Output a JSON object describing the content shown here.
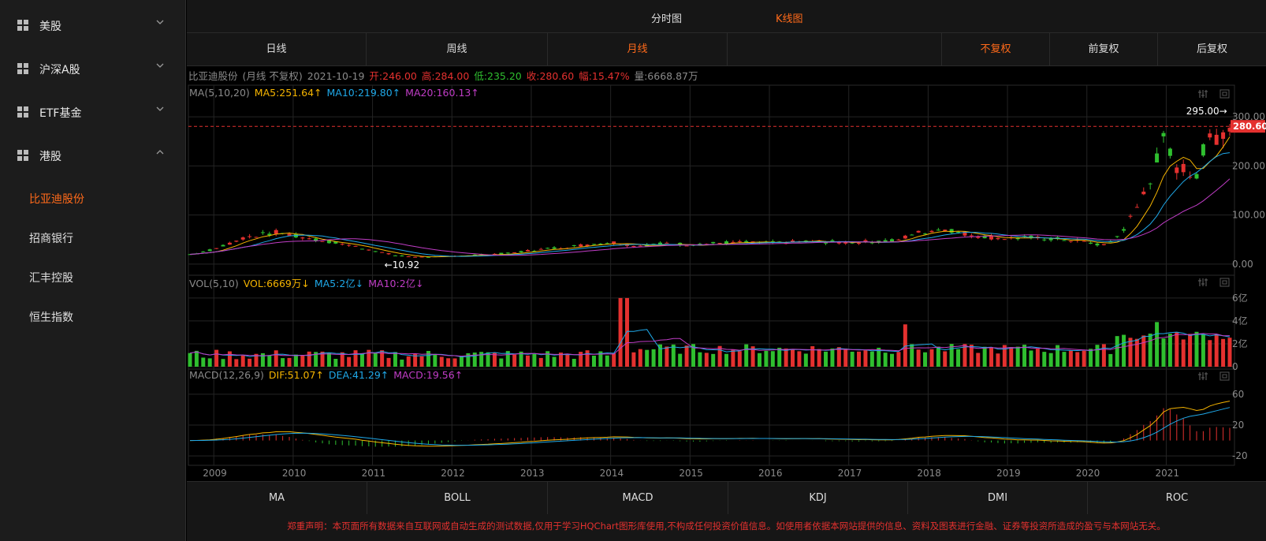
{
  "colors": {
    "accent": "#ff6a1a",
    "up": "#e4312f",
    "down": "#2fbf2f",
    "ma5": "#f5b400",
    "ma10": "#1fa8e8",
    "ma20": "#c03dc6"
  },
  "sidebar": {
    "groups": [
      {
        "label": "美股",
        "expanded": false
      },
      {
        "label": "沪深A股",
        "expanded": false
      },
      {
        "label": "ETF基金",
        "expanded": false
      },
      {
        "label": "港股",
        "expanded": true
      }
    ],
    "sub_items": [
      "比亚迪股份",
      "招商银行",
      "汇丰控股",
      "恒生指数"
    ],
    "active_sub_item": "比亚迪股份"
  },
  "top_tabs": {
    "minute": "分时图",
    "kline": "K线图",
    "active": "K线图"
  },
  "periods": [
    {
      "label": "日线"
    },
    {
      "label": "周线"
    },
    {
      "label": "月线",
      "active": true
    }
  ],
  "adjust": [
    {
      "label": "不复权",
      "active": true
    },
    {
      "label": "前复权"
    },
    {
      "label": "后复权"
    }
  ],
  "info": {
    "name": "比亚迪股份",
    "mode": "(月线 不复权)",
    "date": "2021-10-19",
    "open": "开:246.00",
    "high": "高:284.00",
    "low": "低:235.20",
    "close": "收:280.60",
    "change": "幅:15.47%",
    "volume": "量:6668.87万"
  },
  "ma_line": {
    "prefix": "MA(5,10,20)",
    "ma5": "MA5:251.64↑",
    "ma10": "MA10:219.80↑",
    "ma20": "MA20:160.13↑"
  },
  "vol_line": {
    "prefix": "VOL(5,10)",
    "vol": "VOL:6669万↓",
    "ma5": "MA5:2亿↓",
    "ma10": "MA10:2亿↓"
  },
  "macd_line": {
    "prefix": "MACD(12,26,9)",
    "dif": "DIF:51.07↑",
    "dea": "DEA:41.29↑",
    "macd": "MACD:19.56↑"
  },
  "chart_data": {
    "type": "candlestick",
    "period": "monthly",
    "price_axis": {
      "ticks": [
        "300.00",
        "200.00",
        "100.00",
        "0.00"
      ],
      "range": [
        -5,
        305
      ]
    },
    "last_price": "280.60",
    "max_label": "295.00→",
    "min_label": "←10.92",
    "volume_axis": {
      "ticks": [
        "6亿",
        "4亿",
        "2亿",
        "0"
      ],
      "range": [
        0,
        6.2
      ]
    },
    "macd_axis": {
      "ticks": [
        "60",
        "20",
        "-20"
      ],
      "range": [
        -27,
        68
      ]
    },
    "x_labels": [
      "2009",
      "2010",
      "2011",
      "2012",
      "2013",
      "2014",
      "2015",
      "2016",
      "2017",
      "2018",
      "2019",
      "2020",
      "2021"
    ],
    "start_year": 2008.7,
    "end_year": 2021.8,
    "anchor_closes": [
      [
        2008.7,
        20
      ],
      [
        2009.0,
        30
      ],
      [
        2009.4,
        55
      ],
      [
        2009.8,
        65
      ],
      [
        2010.2,
        52
      ],
      [
        2010.6,
        42
      ],
      [
        2011.0,
        28
      ],
      [
        2011.3,
        17
      ],
      [
        2011.7,
        14
      ],
      [
        2012.2,
        18
      ],
      [
        2012.7,
        22
      ],
      [
        2013.0,
        28
      ],
      [
        2013.5,
        36
      ],
      [
        2014.0,
        45
      ],
      [
        2014.3,
        37
      ],
      [
        2014.7,
        42
      ],
      [
        2015.0,
        40
      ],
      [
        2015.5,
        44
      ],
      [
        2016.0,
        43
      ],
      [
        2016.5,
        46
      ],
      [
        2017.0,
        44
      ],
      [
        2017.6,
        48
      ],
      [
        2017.8,
        62
      ],
      [
        2018.2,
        72
      ],
      [
        2018.5,
        60
      ],
      [
        2018.9,
        52
      ],
      [
        2019.3,
        54
      ],
      [
        2019.7,
        50
      ],
      [
        2020.0,
        44
      ],
      [
        2020.2,
        38
      ],
      [
        2020.4,
        60
      ],
      [
        2020.6,
        110
      ],
      [
        2020.8,
        180
      ],
      [
        2020.95,
        250
      ],
      [
        2021.1,
        200
      ],
      [
        2021.35,
        180
      ],
      [
        2021.5,
        250
      ],
      [
        2021.65,
        265
      ],
      [
        2021.8,
        280
      ]
    ],
    "volume_spikes": [
      [
        2014.15,
        6.0
      ],
      [
        2017.7,
        3.7
      ],
      [
        2020.85,
        3.9
      ],
      [
        2021.1,
        3.0
      ]
    ]
  },
  "indicator_tabs": [
    "MA",
    "BOLL",
    "MACD",
    "KDJ",
    "DMI",
    "ROC"
  ],
  "disclaimer": "郑重声明：本页面所有数据来自互联网或自动生成的测试数据,仅用于学习HQChart图形库使用,不构成任何投资价值信息。如使用者依据本网站提供的信息、资料及图表进行金融、证券等投资所造成的盈亏与本网站无关。"
}
